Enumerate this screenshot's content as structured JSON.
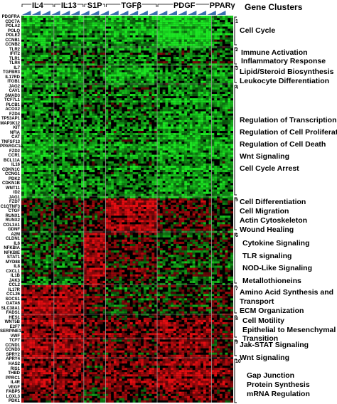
{
  "figure": {
    "treatments": [
      "IL4",
      "IL13",
      "S1P",
      "TGFβ",
      "PDGF",
      "PPARγ"
    ],
    "clusters_title": "Gene Clusters",
    "genes": [
      "PDGFRA",
      "CDC7A",
      "POLA2",
      "POLQ",
      "POLE2",
      "CCNB1",
      "CCNB2",
      "TLR2",
      "IFIT2",
      "TLR1",
      "TLR4",
      "IL7",
      "TGFBR3",
      "IL17RD",
      "ITGB1",
      "JAG2",
      "CAV1",
      "SMAD3",
      "TCF7L1",
      "PLCB1",
      "ACOX2",
      "FZD4",
      "TP53AP1",
      "MAP3K12",
      "KIT",
      "NFIA",
      "CAT",
      "TNFSF13",
      "PPARGC1A",
      "FZD2",
      "CCR1",
      "BCL11A",
      "IL16",
      "CDKN1C",
      "CCNG1",
      "PDK2",
      "CDKN1B",
      "WNT11",
      "ID2",
      "JAG1",
      "FZD7",
      "C1QTNF3",
      "CTGF",
      "RUNX1",
      "RUNX2",
      "COL3A1",
      "GDNF",
      "A2M",
      "CLDN1",
      "IL6",
      "NFKBIA",
      "NFKBIE",
      "STAT1",
      "MYD88",
      "IL8",
      "CXCL1",
      "IL1B",
      "JAK3",
      "CCL2",
      "IL17R",
      "CCL26",
      "SOCS1",
      "GATA6",
      "SLC38A1",
      "FADS1",
      "HES1",
      "WNT5B",
      "E2F7",
      "SERPINE1",
      "VWF",
      "TCF7",
      "CCND1",
      "CCND3",
      "SPRY2",
      "APRY4",
      "HAS2",
      "RIS1",
      "THBD",
      "PPRC1",
      "IL4R",
      "VEGF",
      "FABP5",
      "LOXL3",
      "PDK1"
    ],
    "clusters": [
      {
        "number": "1",
        "terms": [
          "Cell Cycle"
        ]
      },
      {
        "number": "2",
        "terms": [
          "Immune Activation",
          "Inflammatory Response"
        ]
      },
      {
        "number": "3",
        "terms": [
          "Lipid/Steroid Biosynthesis",
          "Leukocyte Differentiation"
        ]
      },
      {
        "number": "4",
        "terms": [
          "Regulation of Transcription",
          "Regulation of Cell Proliferation",
          "Regulation of Cell Death",
          "Wnt Signaling",
          "Cell Cycle Arrest"
        ]
      },
      {
        "number": "5",
        "terms": [
          "Cell Differentiation",
          "Cell Migration",
          "Actin Cytoskeleton",
          "Wound Healing"
        ]
      },
      {
        "number": "6",
        "terms": [
          "Cytokine Signaling",
          "TLR signaling",
          "NOD-Like Signaling",
          "Metallothioneins"
        ]
      },
      {
        "number": "7",
        "terms": [
          "Amino Acid Synthesis and",
          "Transport",
          "ECM Organization"
        ]
      },
      {
        "number": "8",
        "terms": [
          "Cell Motility",
          "Epithelial to Mesenchymal",
          "Transition"
        ]
      },
      {
        "number": "9",
        "terms": [
          "Jak-STAT Signaling",
          "Wnt Signaling"
        ]
      },
      {
        "number": "10",
        "terms": [
          "Gap Junction",
          "Protein Synthesis",
          "mRNA Regulation"
        ]
      }
    ],
    "colors": {
      "up": "#e0141e",
      "down": "#1fc02a",
      "neutral": "#000000",
      "wedge": "#3a6fb0"
    }
  }
}
